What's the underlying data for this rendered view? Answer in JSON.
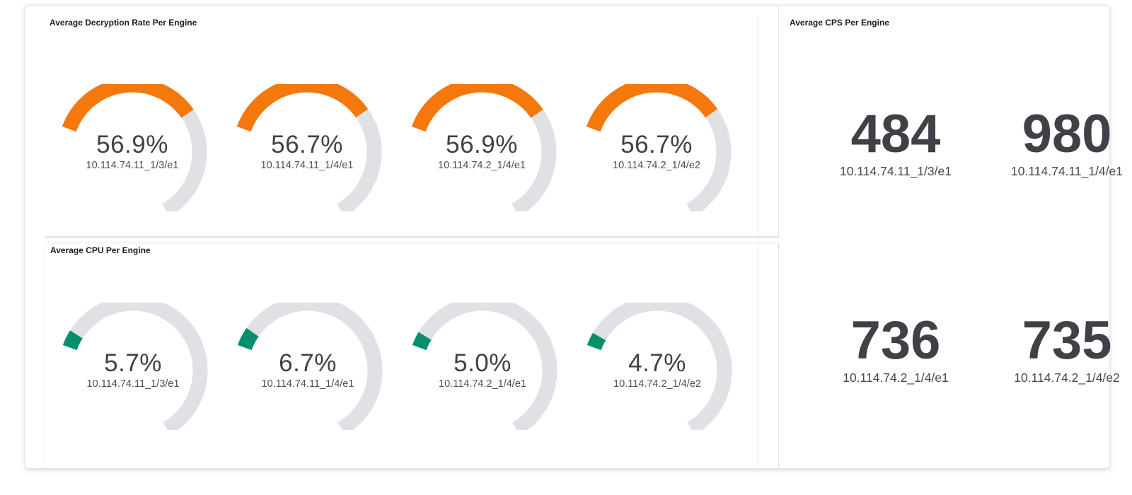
{
  "colors": {
    "decryption_fill": "#f5780c",
    "cpu_fill": "#05906b",
    "track": "#e0e1e5"
  },
  "decryption": {
    "title": "Average Decryption Rate Per Engine",
    "gauges": [
      {
        "value": 56.9,
        "display": "56.9%",
        "label": "10.114.74.11_1/3/e1"
      },
      {
        "value": 56.7,
        "display": "56.7%",
        "label": "10.114.74.11_1/4/e1"
      },
      {
        "value": 56.9,
        "display": "56.9%",
        "label": "10.114.74.2_1/4/e1"
      },
      {
        "value": 56.7,
        "display": "56.7%",
        "label": "10.114.74.2_1/4/e2"
      }
    ]
  },
  "cpu": {
    "title": "Average CPU Per Engine",
    "gauges": [
      {
        "value": 5.7,
        "display": "5.7%",
        "label": "10.114.74.11_1/3/e1"
      },
      {
        "value": 6.7,
        "display": "6.7%",
        "label": "10.114.74.11_1/4/e1"
      },
      {
        "value": 5.0,
        "display": "5.0%",
        "label": "10.114.74.2_1/4/e1"
      },
      {
        "value": 4.7,
        "display": "4.7%",
        "label": "10.114.74.2_1/4/e2"
      }
    ]
  },
  "cps": {
    "title": "Average CPS Per Engine",
    "metrics": [
      {
        "value": "484",
        "label": "10.114.74.11_1/3/e1"
      },
      {
        "value": "980",
        "label": "10.114.74.11_1/4/e1"
      },
      {
        "value": "736",
        "label": "10.114.74.2_1/4/e1"
      },
      {
        "value": "735",
        "label": "10.114.74.2_1/4/e2"
      }
    ]
  }
}
